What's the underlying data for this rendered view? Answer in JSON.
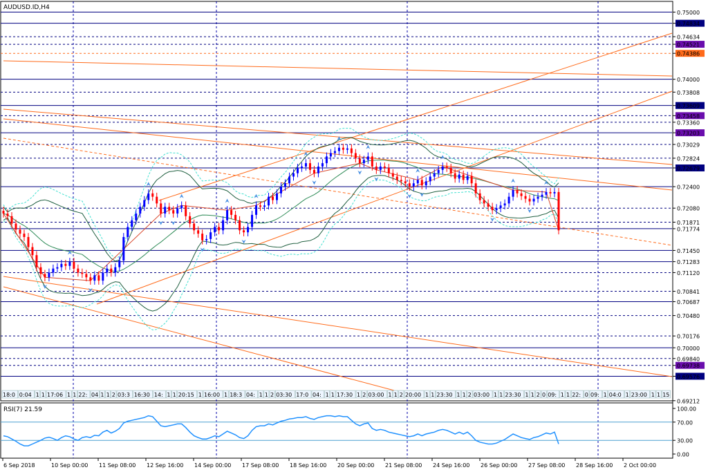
{
  "window": {
    "title": "AUDUSD.ID,H4"
  },
  "colors": {
    "bull": "#0000ff",
    "bear": "#ff0000",
    "grid": "#0000aa",
    "trend": "#ff6a1a",
    "band": "#2e8b57",
    "band_outer": "#40e0d0",
    "level": "#000080",
    "rsi": "#1e90ff"
  },
  "chart_data": [
    {
      "type": "candlestick",
      "title": "AUDUSD.ID,H4",
      "ylim": [
        0.6921,
        0.7516
      ],
      "price_ticks": [
        "0.75000",
        "0.74834",
        "0.74634",
        "0.74521",
        "0.74386",
        "0.74000",
        "0.73808",
        "0.73609",
        "0.73458",
        "0.73360",
        "0.73203",
        "0.73029",
        "0.72824",
        "0.72679",
        "0.72400",
        "0.72080",
        "0.71871",
        "0.71774",
        "0.71450",
        "0.71283",
        "0.71120",
        "0.70841",
        "0.70687",
        "0.70480",
        "0.70176",
        "0.70000",
        "0.69840",
        "0.69738",
        "0.69576",
        "0.69212"
      ],
      "highlighted_ticks": [
        {
          "label": "0.74834",
          "color": "#000080"
        },
        {
          "label": "0.74521",
          "color": "#6a0dad"
        },
        {
          "label": "0.74386",
          "color": "#ff6a1a"
        },
        {
          "label": "0.73609",
          "color": "#000080"
        },
        {
          "label": "0.73458",
          "color": "#6a0dad"
        },
        {
          "label": "0.73203",
          "color": "#6a0dad"
        },
        {
          "label": "0.72679",
          "color": "#000080"
        },
        {
          "label": "0.69738",
          "color": "#6a0dad"
        },
        {
          "label": "0.69576",
          "color": "#000080"
        }
      ],
      "date_ticks": [
        "6 Sep 2018",
        "10 Sep 00:00",
        "11 Sep 08:00",
        "12 Sep 16:00",
        "14 Sep 00:00",
        "17 Sep 08:00",
        "18 Sep 16:00",
        "20 Sep 00:00",
        "21 Sep 08:00",
        "24 Sep 16:00",
        "26 Sep 00:00",
        "27 Sep 08:00",
        "28 Sep 16:00",
        "2 Oct 00:00"
      ],
      "close": [
        0.72,
        0.7196,
        0.7185,
        0.7176,
        0.717,
        0.7165,
        0.715,
        0.7138,
        0.712,
        0.711,
        0.7105,
        0.7112,
        0.7118,
        0.712,
        0.7125,
        0.7122,
        0.7128,
        0.7118,
        0.7112,
        0.711,
        0.7105,
        0.71,
        0.7108,
        0.71,
        0.7112,
        0.7118,
        0.7112,
        0.712,
        0.713,
        0.7165,
        0.718,
        0.719,
        0.72,
        0.721,
        0.722,
        0.723,
        0.7225,
        0.7215,
        0.72,
        0.721,
        0.7205,
        0.72,
        0.7208,
        0.7212,
        0.7196,
        0.7185,
        0.7175,
        0.717,
        0.716,
        0.7162,
        0.7172,
        0.718,
        0.7175,
        0.719,
        0.7205,
        0.7198,
        0.719,
        0.7175,
        0.7172,
        0.718,
        0.7198,
        0.7212,
        0.721,
        0.7212,
        0.7225,
        0.722,
        0.723,
        0.724,
        0.7245,
        0.7255,
        0.726,
        0.7268,
        0.727,
        0.7275,
        0.7265,
        0.726,
        0.727,
        0.7275,
        0.7285,
        0.729,
        0.7293,
        0.7298,
        0.7295,
        0.7297,
        0.729,
        0.7282,
        0.7275,
        0.728,
        0.7285,
        0.727,
        0.7265,
        0.727,
        0.7268,
        0.726,
        0.7255,
        0.725,
        0.7248,
        0.7245,
        0.724,
        0.7245,
        0.725,
        0.7242,
        0.7248,
        0.7255,
        0.726,
        0.7265,
        0.727,
        0.7268,
        0.726,
        0.7252,
        0.7258,
        0.725,
        0.7256,
        0.7245,
        0.723,
        0.722,
        0.7215,
        0.721,
        0.7205,
        0.7208,
        0.7212,
        0.7215,
        0.7225,
        0.7235,
        0.723,
        0.7226,
        0.7222,
        0.7218,
        0.7222,
        0.7225,
        0.7228,
        0.7232,
        0.723,
        0.7232,
        0.7175
      ]
    },
    {
      "type": "line",
      "title": "RSI(7) 21.59",
      "ylim": [
        0,
        100
      ],
      "ticks": [
        "100.00",
        "70.00",
        "30.00",
        "0.00"
      ],
      "levels": [
        70,
        30
      ],
      "x_start_index": 0,
      "values": [
        40,
        38,
        33,
        28,
        22,
        18,
        18,
        22,
        26,
        30,
        35,
        37,
        34,
        30,
        36,
        40,
        38,
        33,
        30,
        36,
        38,
        36,
        41,
        40,
        48,
        52,
        46,
        50,
        56,
        68,
        72,
        74,
        76,
        78,
        80,
        84,
        82,
        72,
        62,
        60,
        62,
        64,
        66,
        66,
        58,
        48,
        40,
        36,
        33,
        33,
        36,
        40,
        38,
        44,
        50,
        46,
        42,
        36,
        34,
        40,
        52,
        60,
        62,
        62,
        66,
        64,
        68,
        72,
        74,
        77,
        78,
        80,
        80,
        82,
        78,
        76,
        80,
        82,
        84,
        84,
        82,
        84,
        82,
        82,
        74,
        66,
        62,
        66,
        68,
        56,
        52,
        54,
        52,
        48,
        46,
        44,
        42,
        40,
        38,
        40,
        44,
        40,
        44,
        46,
        48,
        52,
        54,
        52,
        48,
        44,
        48,
        44,
        48,
        40,
        30,
        26,
        24,
        22,
        22,
        24,
        28,
        32,
        38,
        44,
        40,
        36,
        34,
        32,
        36,
        38,
        42,
        46,
        44,
        48,
        22
      ]
    }
  ],
  "session_labels": [
    "18:0",
    "0:04",
    "1",
    "1",
    "17:06",
    "1",
    "1",
    "22:",
    "04",
    "1",
    "1",
    "2",
    "03:3",
    "16:30",
    "14:",
    "1",
    "1",
    "20:15",
    "1",
    "16:00",
    "1",
    "18:3",
    "04:",
    "1",
    "1",
    "2",
    "03:30",
    "17:0",
    "04:",
    "1",
    "1",
    "17:30",
    "1",
    "2",
    "03:00",
    "1",
    "1",
    "2",
    "20:00",
    "1",
    "1",
    "23:30",
    "1",
    "1",
    "2",
    "03:00",
    "1",
    "1",
    "23:30",
    "1",
    "1",
    "2",
    "0",
    "09:",
    "1",
    "1",
    "22:",
    "0",
    "09:",
    "1",
    "04:0",
    "1",
    "23:00",
    "1",
    "1",
    "17:3",
    "03:30",
    "15"
  ]
}
